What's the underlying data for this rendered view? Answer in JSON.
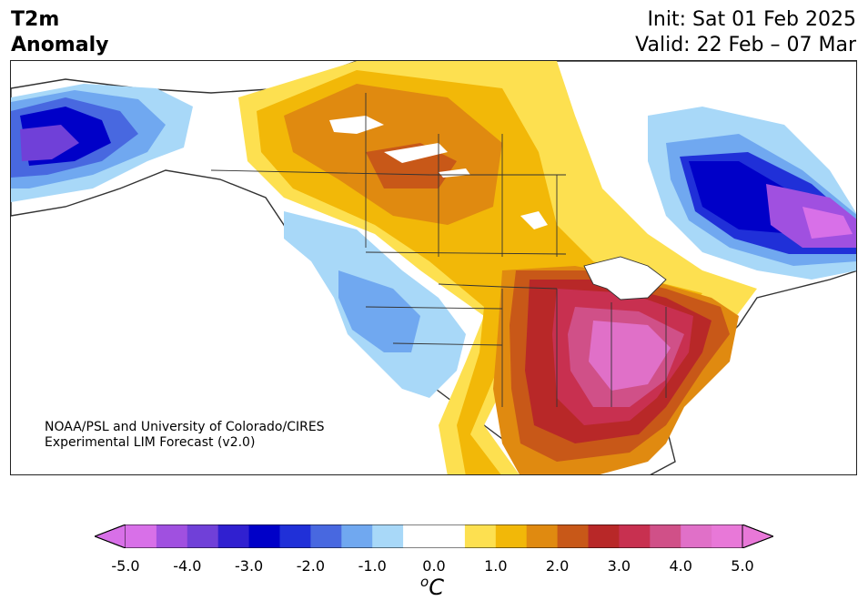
{
  "title": {
    "left_line1": "T2m",
    "left_line2": "Anomaly",
    "right_line1": "Init: Sat 01 Feb 2025",
    "right_line2": "Valid: 22 Feb – 07 Mar"
  },
  "credit": {
    "line1": "NOAA/PSL and University of Colorado/CIRES",
    "line2": "Experimental LIM Forecast (v2.0)"
  },
  "colorbar": {
    "ticks": [
      "-5.0",
      "-4.0",
      "-3.0",
      "-2.0",
      "-1.0",
      "0.0",
      "1.0",
      "2.0",
      "3.0",
      "4.0",
      "5.0"
    ],
    "unit_base": "C",
    "unit_sup": "o",
    "min": -5.0,
    "max": 5.0,
    "step": 0.5,
    "under_color": "#d870e8",
    "over_color": "#e878d8",
    "colors": [
      "#d870e8",
      "#a050e0",
      "#7040d8",
      "#3020d0",
      "#0000c8",
      "#2030d8",
      "#4868e0",
      "#70a8f0",
      "#a8d8f8",
      "#ffffff",
      "#ffffff",
      "#fde050",
      "#f2b808",
      "#e08a10",
      "#c85818",
      "#b82828",
      "#c83050",
      "#d05088",
      "#e070c8",
      "#e878d8"
    ]
  }
}
